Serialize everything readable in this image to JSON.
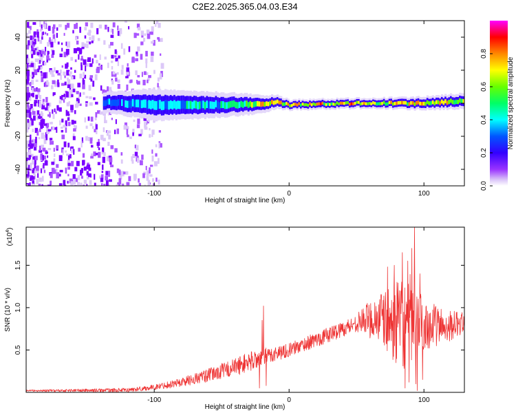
{
  "title": "C2E2.2025.365.04.03.E34",
  "chart_data": [
    {
      "type": "heatmap",
      "xlabel": "Height of straight line (km)",
      "ylabel": "Frequency (Hz)",
      "xlim": [
        -195,
        130
      ],
      "ylim": [
        -50,
        50
      ],
      "x_ticks": [
        -100,
        0,
        100
      ],
      "y_ticks": [
        -40,
        -20,
        0,
        20,
        40
      ],
      "colorbar": {
        "label": "Normalized spectral amplitude",
        "range": [
          0.0,
          1.0
        ],
        "ticks": [
          "0.0",
          "0.2",
          "0.4",
          "0.6",
          "0.8"
        ],
        "colors": [
          "#ffffff",
          "#c8a0f0",
          "#8800ff",
          "#0000ff",
          "#00ffff",
          "#00ff00",
          "#ffff00",
          "#ff8800",
          "#ff0000",
          "#ff00ff"
        ]
      },
      "signal_band": {
        "description": "narrow band near 0 Hz",
        "center_hz": [
          {
            "x": -135,
            "y": 0.5
          },
          {
            "x": -100,
            "y": -1
          },
          {
            "x": -60,
            "y": -1
          },
          {
            "x": -20,
            "y": -0.5
          },
          {
            "x": -10,
            "y": 1
          },
          {
            "x": 0,
            "y": -1
          },
          {
            "x": 50,
            "y": 0
          },
          {
            "x": 100,
            "y": 0
          },
          {
            "x": 130,
            "y": 1.5
          }
        ],
        "halfwidth_hz": [
          {
            "x": -135,
            "y": 4
          },
          {
            "x": -100,
            "y": 6
          },
          {
            "x": -60,
            "y": 5
          },
          {
            "x": -30,
            "y": 4
          },
          {
            "x": 0,
            "y": 2
          },
          {
            "x": 60,
            "y": 2
          },
          {
            "x": 130,
            "y": 3
          }
        ],
        "peak_amplitude": [
          {
            "x": -135,
            "y": 0.45
          },
          {
            "x": -100,
            "y": 0.5
          },
          {
            "x": -50,
            "y": 0.55
          },
          {
            "x": -25,
            "y": 0.75
          },
          {
            "x": -20,
            "y": 0.95
          },
          {
            "x": 0,
            "y": 0.9
          },
          {
            "x": 50,
            "y": 0.95
          },
          {
            "x": 130,
            "y": 0.85
          }
        ],
        "noise_extent_x": [
          -195,
          -95
        ]
      }
    },
    {
      "type": "line",
      "xlabel": "Height of straight line (km)",
      "ylabel": "SNR (10 * v/v)",
      "y_scale_label": "(x10",
      "y_scale_exponent": "4",
      "y_scale_suffix": ")",
      "xlim": [
        -195,
        130
      ],
      "ylim": [
        0,
        1.95
      ],
      "x_ticks": [
        -100,
        0,
        100
      ],
      "y_ticks": [
        0.5,
        1.0,
        1.5
      ],
      "y_tick_labels": [
        "0.5",
        "1.0",
        "1.5"
      ],
      "color": "#ee3333",
      "series": [
        {
          "name": "SNR",
          "baseline": [
            {
              "x": -195,
              "y": 0.02
            },
            {
              "x": -120,
              "y": 0.025
            },
            {
              "x": -100,
              "y": 0.06
            },
            {
              "x": -80,
              "y": 0.12
            },
            {
              "x": -60,
              "y": 0.2
            },
            {
              "x": -40,
              "y": 0.3
            },
            {
              "x": -30,
              "y": 0.36
            },
            {
              "x": -18,
              "y": 0.42
            },
            {
              "x": -12,
              "y": 0.45
            },
            {
              "x": 0,
              "y": 0.5
            },
            {
              "x": 20,
              "y": 0.62
            },
            {
              "x": 40,
              "y": 0.75
            },
            {
              "x": 55,
              "y": 0.85
            },
            {
              "x": 65,
              "y": 0.88
            },
            {
              "x": 75,
              "y": 0.82
            },
            {
              "x": 90,
              "y": 0.8
            },
            {
              "x": 100,
              "y": 0.8
            },
            {
              "x": 115,
              "y": 0.78
            },
            {
              "x": 130,
              "y": 0.82
            }
          ],
          "noise_amplitude": [
            {
              "x": -195,
              "y": 0.01
            },
            {
              "x": -100,
              "y": 0.03
            },
            {
              "x": -60,
              "y": 0.08
            },
            {
              "x": -30,
              "y": 0.12
            },
            {
              "x": 0,
              "y": 0.08
            },
            {
              "x": 50,
              "y": 0.1
            },
            {
              "x": 70,
              "y": 0.35
            },
            {
              "x": 90,
              "y": 0.6
            },
            {
              "x": 100,
              "y": 0.3
            },
            {
              "x": 130,
              "y": 0.12
            }
          ],
          "spikes": [
            {
              "x": -19,
              "y": 1.02
            },
            {
              "x": -20,
              "y": 0.85
            },
            {
              "x": -22,
              "y": 0.05
            },
            {
              "x": -17,
              "y": 0.08
            },
            {
              "x": 73,
              "y": 1.48
            },
            {
              "x": 78,
              "y": 1.5
            },
            {
              "x": 80,
              "y": 1.3
            },
            {
              "x": 84,
              "y": 1.65
            },
            {
              "x": 86,
              "y": 0.05
            },
            {
              "x": 88,
              "y": 1.55
            },
            {
              "x": 89,
              "y": 0.12
            },
            {
              "x": 91,
              "y": 1.7
            },
            {
              "x": 93,
              "y": 1.95
            },
            {
              "x": 94,
              "y": 0.1
            },
            {
              "x": 95,
              "y": 0.02
            },
            {
              "x": 97,
              "y": 1.4
            },
            {
              "x": 99,
              "y": 0.15
            }
          ]
        }
      ]
    }
  ]
}
